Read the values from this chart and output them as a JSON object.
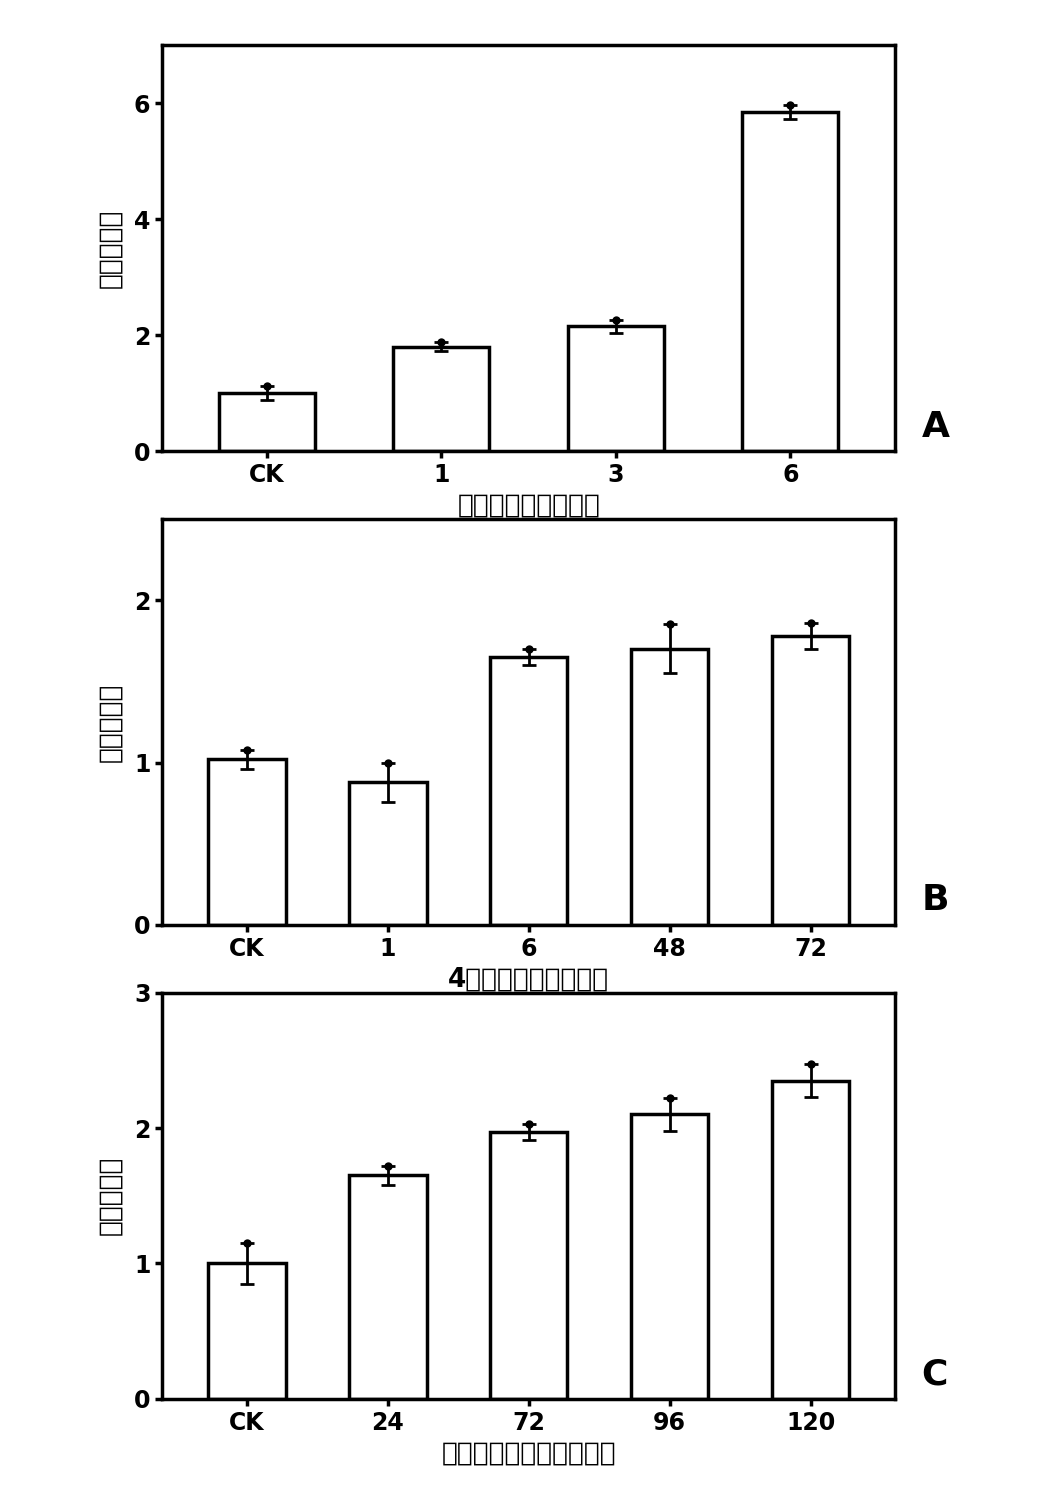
{
  "panel_A": {
    "categories": [
      "CK",
      "1",
      "3",
      "6"
    ],
    "values": [
      1.0,
      1.8,
      2.15,
      5.85
    ],
    "errors": [
      0.12,
      0.08,
      0.12,
      0.12
    ],
    "xlabel": "脉水后时间（小时）",
    "ylabel": "相对表达量",
    "ylim": [
      0,
      7
    ],
    "yticks": [
      0,
      2,
      4,
      6
    ],
    "label": "A"
  },
  "panel_B": {
    "categories": [
      "CK",
      "1",
      "6",
      "48",
      "72"
    ],
    "values": [
      1.02,
      0.88,
      1.65,
      1.7,
      1.78
    ],
    "errors": [
      0.06,
      0.12,
      0.05,
      0.15,
      0.08
    ],
    "xlabel": "4度处理时间（小时）",
    "ylabel": "相对表达量",
    "ylim": [
      0,
      2.5
    ],
    "yticks": [
      0,
      1,
      2
    ],
    "label": "B"
  },
  "panel_C": {
    "categories": [
      "CK",
      "24",
      "72",
      "96",
      "120"
    ],
    "values": [
      1.0,
      1.65,
      1.97,
      2.1,
      2.35
    ],
    "errors": [
      0.15,
      0.07,
      0.06,
      0.12,
      0.12
    ],
    "xlabel": "脉落酸处理时间（小时）",
    "ylabel": "相对表达量",
    "ylim": [
      0,
      3
    ],
    "yticks": [
      0,
      1,
      2,
      3
    ],
    "label": "C"
  },
  "bar_color": "#ffffff",
  "bar_edgecolor": "#000000",
  "bar_linewidth": 2.5,
  "bar_width": 0.55,
  "error_capsize": 5,
  "error_linewidth": 2.0,
  "error_color": "#000000",
  "background_color": "#ffffff",
  "tick_fontsize": 17,
  "label_fontsize": 19,
  "panel_label_fontsize": 26,
  "axis_linewidth": 2.5
}
